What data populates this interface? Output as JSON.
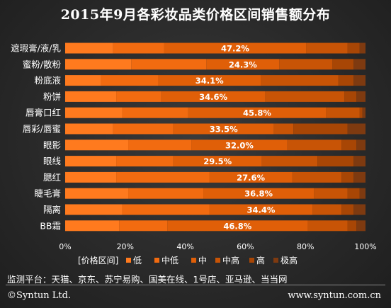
{
  "chart_data": {
    "type": "bar",
    "stacked": true,
    "orientation": "horizontal",
    "title": "2015年9月各彩妆品类价格区间销售额分布",
    "categories": [
      "遮瑕膏/液/乳",
      "蜜粉/散粉",
      "粉底液",
      "粉饼",
      "唇膏口红",
      "唇彩/唇蜜",
      "眼影",
      "眼线",
      "腮红",
      "睫毛膏",
      "隔离",
      "BB霜"
    ],
    "data_labels": [
      "47.2%",
      "24.3%",
      "34.1%",
      "34.6%",
      "45.8%",
      "33.5%",
      "32.0%",
      "29.5%",
      "27.6%",
      "36.8%",
      "34.4%",
      "46.8%"
    ],
    "legend_title": "[价格区间]",
    "series": [
      {
        "name": "低",
        "color": "#FF7A1E",
        "values": [
          16.0,
          22.0,
          12.0,
          17.0,
          19.0,
          16.0,
          21.0,
          17.0,
          17.0,
          21.0,
          19.0,
          18.0
        ]
      },
      {
        "name": "中低",
        "color": "#F26B10",
        "values": [
          17.0,
          25.0,
          19.0,
          15.0,
          22.0,
          20.0,
          21.0,
          19.0,
          31.0,
          25.0,
          29.0,
          16.0
        ]
      },
      {
        "name": "中",
        "color": "#E05F08",
        "values": [
          47.2,
          24.3,
          34.1,
          34.6,
          45.8,
          33.5,
          32.0,
          29.5,
          27.6,
          36.8,
          34.4,
          46.8
        ]
      },
      {
        "name": "中高",
        "color": "#C85406",
        "values": [
          13.8,
          17.7,
          25.9,
          26.4,
          11.2,
          6.5,
          18.0,
          18.5,
          16.4,
          11.2,
          9.6,
          13.2
        ]
      },
      {
        "name": "高",
        "color": "#A84605",
        "values": [
          4.0,
          7.0,
          5.0,
          4.0,
          1.0,
          18.0,
          5.0,
          12.0,
          4.0,
          4.0,
          4.0,
          3.0
        ]
      },
      {
        "name": "极高",
        "color": "#7E3A10",
        "values": [
          2.0,
          4.0,
          4.0,
          3.0,
          1.0,
          6.0,
          3.0,
          4.0,
          4.0,
          2.0,
          4.0,
          3.0
        ]
      }
    ],
    "label_series": "中",
    "x_ticks": [
      "0%",
      "20%",
      "40%",
      "60%",
      "80%",
      "100%"
    ],
    "xlim": [
      0,
      100
    ],
    "grid": false,
    "legend_position": "bottom"
  },
  "source_text": "监测平台：天猫、京东、苏宁易购、国美在线、1号店、亚马逊、当当网",
  "copyright": "©Syntun Ltd.",
  "website": "www.syntun.com.cn"
}
